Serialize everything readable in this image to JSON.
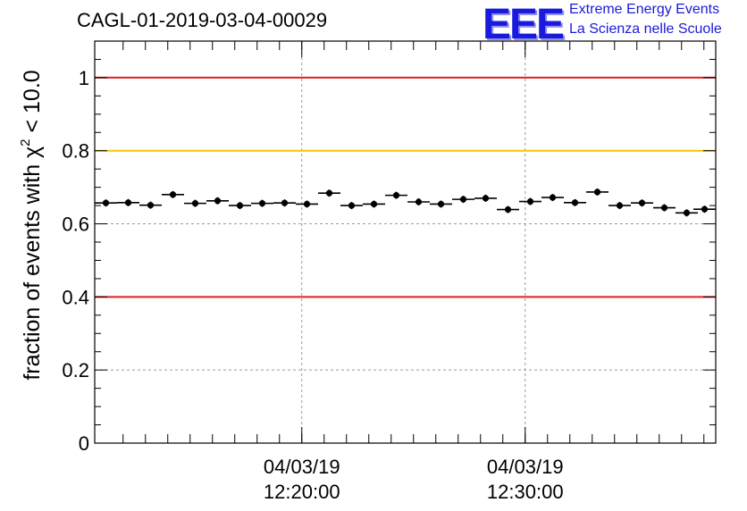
{
  "header": {
    "title": "CAGL-01-2019-03-04-00029",
    "logo_mark": "EEE",
    "logo_line1": "Extreme Energy Events",
    "logo_line2": "La Scienza nelle Scuole"
  },
  "chart_data": {
    "type": "scatter",
    "title": "CAGL-01-2019-03-04-00029",
    "xlabel": "",
    "ylabel": "fraction of events with χ² < 10.0",
    "ylabel_prefix": "fraction of events with ",
    "ylabel_chi": "χ",
    "ylabel_sup": "2",
    "ylabel_suffix": " < 10.0",
    "ylim": [
      0,
      1.1
    ],
    "yticks": [
      {
        "value": 0,
        "label": "0"
      },
      {
        "value": 0.2,
        "label": "0.2"
      },
      {
        "value": 0.4,
        "label": "0.4"
      },
      {
        "value": 0.6,
        "label": "0.6"
      },
      {
        "value": 0.8,
        "label": "0.8"
      },
      {
        "value": 1,
        "label": "1"
      }
    ],
    "x_unit": "minutes after 12:10:44",
    "xlim": [
      0,
      27.8
    ],
    "xticks": [
      {
        "value": 9.27,
        "label_date": "04/03/19",
        "label_time": "12:20:00"
      },
      {
        "value": 19.27,
        "label_date": "04/03/19",
        "label_time": "12:30:00"
      }
    ],
    "grid": true,
    "reference_lines": [
      {
        "value": 1.0,
        "color": "#e0201e"
      },
      {
        "value": 0.8,
        "color": "#f7c400"
      },
      {
        "value": 0.4,
        "color": "#e0201e"
      }
    ],
    "point_color": "#000000",
    "bin_width": 1.0,
    "series": [
      {
        "x": [
          0.5,
          1.5,
          2.5,
          3.5,
          4.5,
          5.5,
          6.5,
          7.5,
          8.5,
          9.5,
          10.5,
          11.5,
          12.5,
          13.5,
          14.5,
          15.5,
          16.5,
          17.5,
          18.5,
          19.5,
          20.5,
          21.5,
          22.5,
          23.5,
          24.5,
          25.5,
          26.5,
          27.3
        ],
        "values": [
          0.657,
          0.658,
          0.651,
          0.68,
          0.656,
          0.663,
          0.65,
          0.656,
          0.657,
          0.654,
          0.684,
          0.65,
          0.654,
          0.678,
          0.66,
          0.654,
          0.667,
          0.67,
          0.639,
          0.661,
          0.672,
          0.658,
          0.687,
          0.65,
          0.657,
          0.644,
          0.63,
          0.64
        ]
      }
    ]
  }
}
